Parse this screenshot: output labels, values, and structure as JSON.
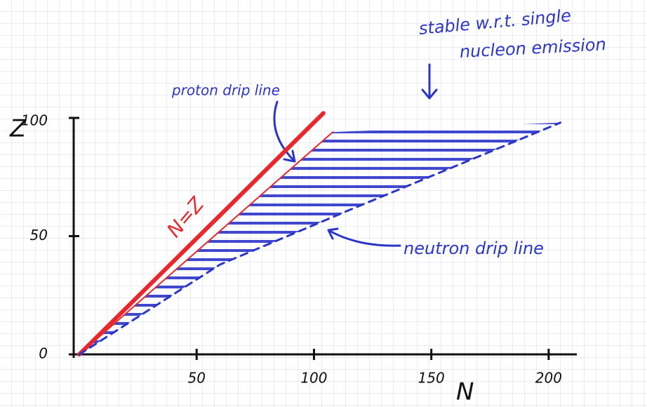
{
  "chart_data": {
    "type": "line",
    "xlabel": "N",
    "ylabel": "Z",
    "xlim": [
      0,
      212
    ],
    "ylim": [
      0,
      100
    ],
    "xticks": [
      50,
      100,
      150,
      200
    ],
    "yticks": [
      0,
      50,
      100
    ],
    "series": [
      {
        "color": "#e8282c",
        "line_width": 6,
        "dash": false,
        "x": [
          0,
          104
        ],
        "values": [
          0,
          102
        ]
      },
      {
        "color": "#e8282c",
        "line_width": 2,
        "dash": false,
        "x": [
          0,
          108
        ],
        "values": [
          0,
          94
        ]
      },
      {
        "color": "#2b35c8",
        "line_width": 3,
        "dash": true,
        "x": [
          0,
          60,
          115,
          205
        ],
        "values": [
          0,
          38,
          61,
          98
        ]
      }
    ],
    "region_color": "#2b35c8",
    "annotations": [
      {
        "text": "proton drip line",
        "color": "#2b35c8"
      },
      {
        "text": "stable w.r.t. single",
        "color": "#2b35c8"
      },
      {
        "text": "nucleon emission",
        "color": "#2b35c8"
      },
      {
        "text": "neutron drip line",
        "color": "#2b35c8"
      },
      {
        "text": "N=Z",
        "color": "#e8282c"
      }
    ]
  }
}
